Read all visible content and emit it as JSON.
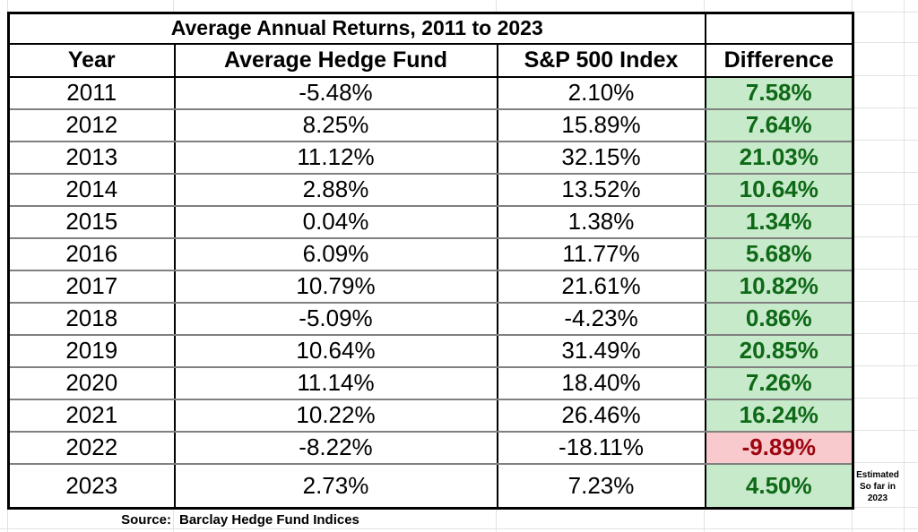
{
  "chart_data": {
    "type": "table",
    "title": "Average Annual Returns, 2011 to 2023",
    "columns": [
      "Year",
      "Average Hedge Fund",
      "S&P 500 Index",
      "Difference"
    ],
    "rows": [
      {
        "year": "2011",
        "hedge_fund": "-5.48%",
        "sp500": "2.10%",
        "difference": "7.58%"
      },
      {
        "year": "2012",
        "hedge_fund": "8.25%",
        "sp500": "15.89%",
        "difference": "7.64%"
      },
      {
        "year": "2013",
        "hedge_fund": "11.12%",
        "sp500": "32.15%",
        "difference": "21.03%"
      },
      {
        "year": "2014",
        "hedge_fund": "2.88%",
        "sp500": "13.52%",
        "difference": "10.64%"
      },
      {
        "year": "2015",
        "hedge_fund": "0.04%",
        "sp500": "1.38%",
        "difference": "1.34%"
      },
      {
        "year": "2016",
        "hedge_fund": "6.09%",
        "sp500": "11.77%",
        "difference": "5.68%"
      },
      {
        "year": "2017",
        "hedge_fund": "10.79%",
        "sp500": "21.61%",
        "difference": "10.82%"
      },
      {
        "year": "2018",
        "hedge_fund": "-5.09%",
        "sp500": "-4.23%",
        "difference": "0.86%"
      },
      {
        "year": "2019",
        "hedge_fund": "10.64%",
        "sp500": "31.49%",
        "difference": "20.85%"
      },
      {
        "year": "2020",
        "hedge_fund": "11.14%",
        "sp500": "18.40%",
        "difference": "7.26%"
      },
      {
        "year": "2021",
        "hedge_fund": "10.22%",
        "sp500": "26.46%",
        "difference": "16.24%"
      },
      {
        "year": "2022",
        "hedge_fund": "-8.22%",
        "sp500": "-18.11%",
        "difference": "-9.89%"
      },
      {
        "year": "2023",
        "hedge_fund": "2.73%",
        "sp500": "7.23%",
        "difference": "4.50%"
      }
    ],
    "source": {
      "label": "Source:",
      "text": "Barclay Hedge Fund Indices"
    },
    "note": {
      "lines": [
        "Estimated",
        "So far in",
        "2023"
      ]
    },
    "colors": {
      "positive_bg": "#c7eacb",
      "positive_text": "#0e6916",
      "negative_bg": "#f8c9cd",
      "negative_text": "#9c0610",
      "table_border": "#000000",
      "row_line": "#808080",
      "gridline": "#e3e3e3"
    }
  }
}
